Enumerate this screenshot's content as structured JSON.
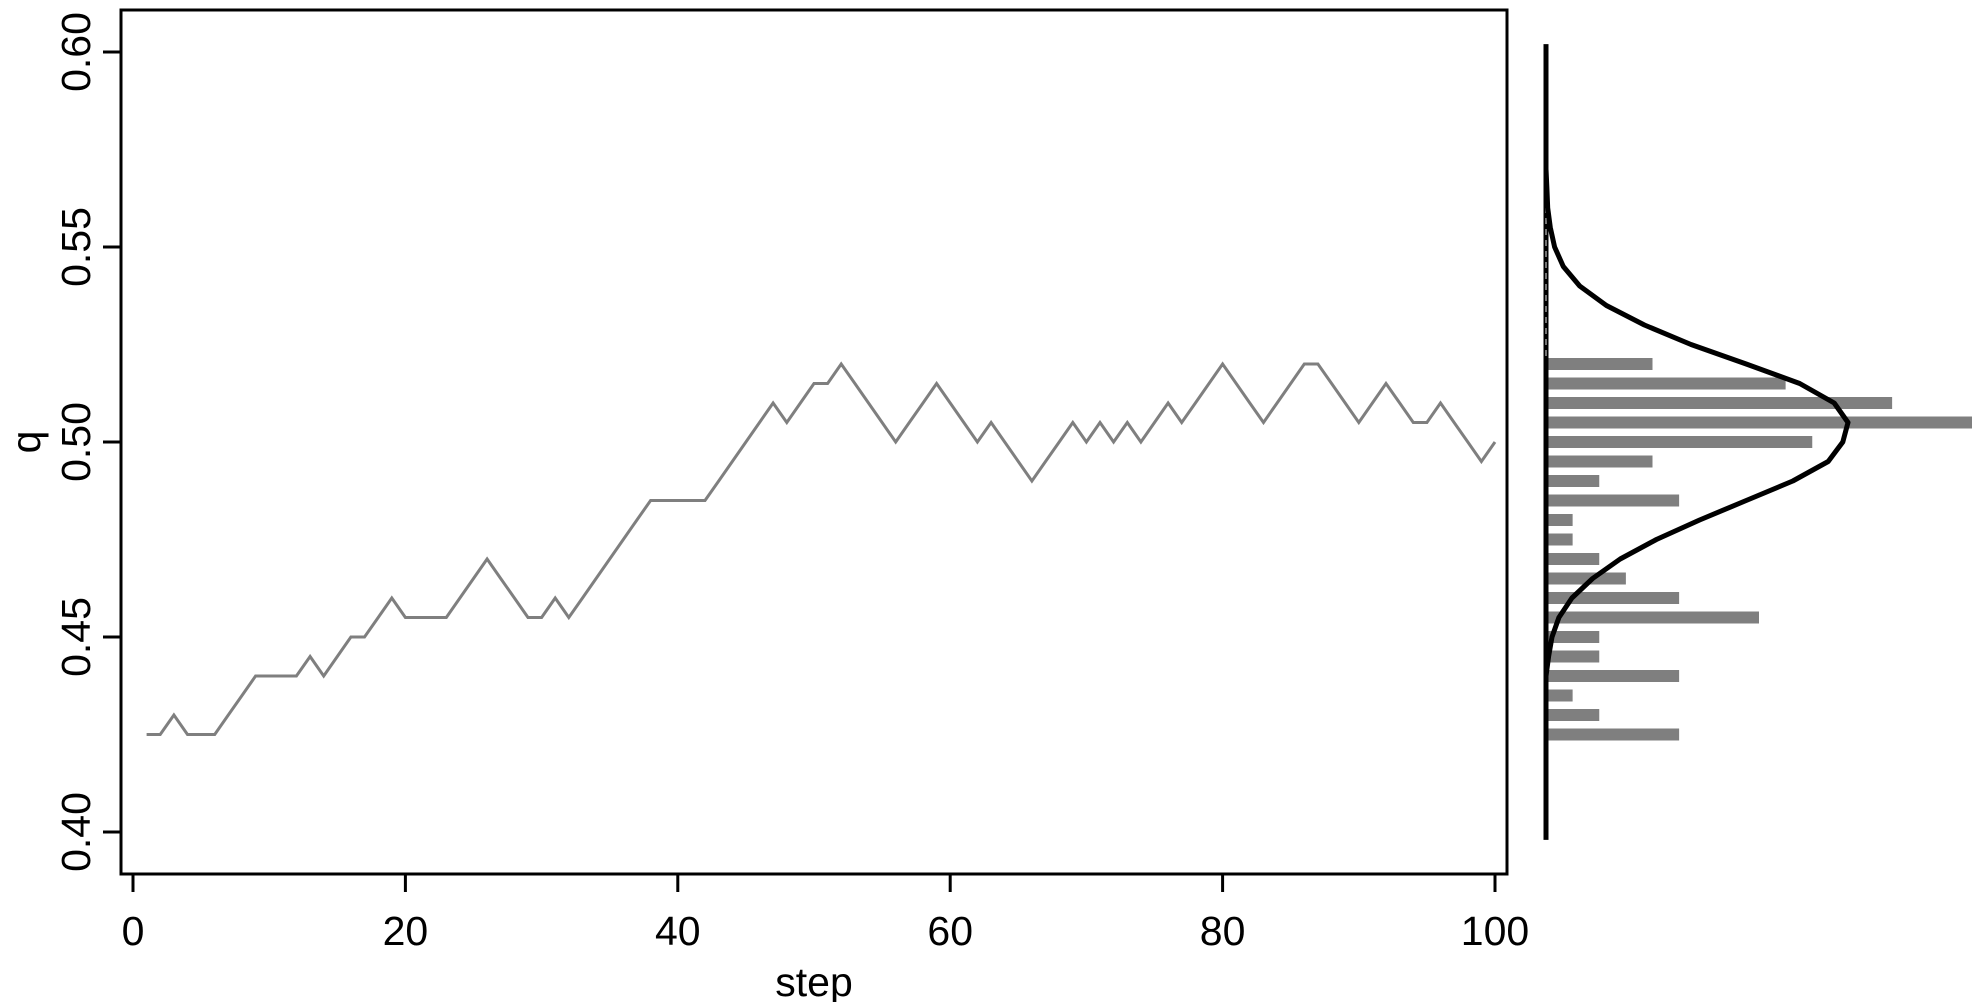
{
  "chart_data": [
    {
      "type": "line",
      "xlabel": "step",
      "ylabel": "q",
      "xlim": [
        0,
        100
      ],
      "ylim": [
        0.4,
        0.6
      ],
      "x_ticks": [
        0,
        20,
        40,
        60,
        80,
        100
      ],
      "x_tick_labels": [
        "0",
        "20",
        "40",
        "60",
        "80",
        "100"
      ],
      "y_ticks": [
        0.4,
        0.45,
        0.5,
        0.55,
        0.6
      ],
      "y_tick_labels": [
        "0.40",
        "0.45",
        "0.50",
        "0.55",
        "0.60"
      ],
      "series": [
        {
          "color": "#7f7f7f",
          "x": [
            1,
            2,
            3,
            4,
            5,
            6,
            7,
            8,
            9,
            10,
            11,
            12,
            13,
            14,
            15,
            16,
            17,
            18,
            19,
            20,
            21,
            22,
            23,
            24,
            25,
            26,
            27,
            28,
            29,
            30,
            31,
            32,
            33,
            34,
            35,
            36,
            37,
            38,
            39,
            40,
            41,
            42,
            43,
            44,
            45,
            46,
            47,
            48,
            49,
            50,
            51,
            52,
            53,
            54,
            55,
            56,
            57,
            58,
            59,
            60,
            61,
            62,
            63,
            64,
            65,
            66,
            67,
            68,
            69,
            70,
            71,
            72,
            73,
            74,
            75,
            76,
            77,
            78,
            79,
            80,
            81,
            82,
            83,
            84,
            85,
            86,
            87,
            88,
            89,
            90,
            91,
            92,
            93,
            94,
            95,
            96,
            97,
            98,
            99,
            100
          ],
          "y": [
            0.425,
            0.425,
            0.43,
            0.425,
            0.425,
            0.425,
            0.43,
            0.435,
            0.44,
            0.44,
            0.44,
            0.44,
            0.445,
            0.44,
            0.445,
            0.45,
            0.45,
            0.455,
            0.46,
            0.455,
            0.455,
            0.455,
            0.455,
            0.46,
            0.465,
            0.47,
            0.465,
            0.46,
            0.455,
            0.455,
            0.46,
            0.455,
            0.46,
            0.465,
            0.47,
            0.475,
            0.48,
            0.485,
            0.485,
            0.485,
            0.485,
            0.485,
            0.49,
            0.495,
            0.5,
            0.505,
            0.51,
            0.505,
            0.51,
            0.515,
            0.515,
            0.52,
            0.515,
            0.51,
            0.505,
            0.5,
            0.505,
            0.51,
            0.515,
            0.51,
            0.505,
            0.5,
            0.505,
            0.5,
            0.495,
            0.49,
            0.495,
            0.5,
            0.505,
            0.5,
            0.505,
            0.5,
            0.505,
            0.5,
            0.505,
            0.51,
            0.505,
            0.51,
            0.515,
            0.52,
            0.515,
            0.51,
            0.505,
            0.51,
            0.515,
            0.52,
            0.52,
            0.515,
            0.51,
            0.505,
            0.51,
            0.515,
            0.51,
            0.505,
            0.505,
            0.51,
            0.505,
            0.5,
            0.495,
            0.5
          ]
        }
      ]
    },
    {
      "type": "bar",
      "orientation": "horizontal",
      "shares_y_axis_with_chart": 0,
      "bar_color": "#7f7f7f",
      "categories": [
        0.425,
        0.43,
        0.435,
        0.44,
        0.445,
        0.45,
        0.455,
        0.46,
        0.465,
        0.47,
        0.475,
        0.48,
        0.485,
        0.49,
        0.495,
        0.5,
        0.505,
        0.51,
        0.515,
        0.52
      ],
      "values": [
        5,
        2,
        1,
        5,
        2,
        2,
        8,
        5,
        3,
        2,
        1,
        1,
        5,
        2,
        4,
        10,
        16,
        13,
        9,
        4
      ],
      "density_curve": {
        "color": "#000000",
        "y": [
          0.398,
          0.44,
          0.445,
          0.45,
          0.455,
          0.46,
          0.465,
          0.47,
          0.475,
          0.48,
          0.485,
          0.49,
          0.495,
          0.5,
          0.505,
          0.51,
          0.515,
          0.52,
          0.525,
          0.53,
          0.535,
          0.54,
          0.545,
          0.55,
          0.555,
          0.56,
          0.565,
          0.57,
          0.602
        ],
        "density": [
          0.0,
          0.0,
          0.3,
          0.7,
          1.5,
          3.0,
          5.4,
          8.6,
          12.8,
          17.8,
          23.2,
          28.6,
          32.7,
          34.4,
          35.0,
          33.4,
          29.4,
          23.2,
          16.8,
          11.4,
          7.0,
          3.9,
          2.0,
          1.0,
          0.5,
          0.2,
          0.1,
          0.0,
          0.0
        ]
      }
    }
  ]
}
